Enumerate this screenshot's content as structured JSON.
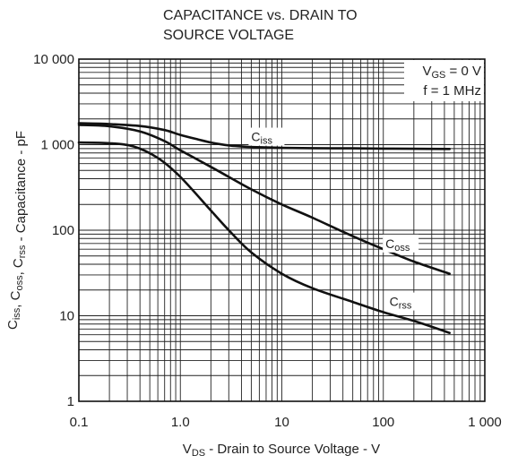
{
  "chart_data": {
    "type": "line",
    "title_lines": [
      "CAPACITANCE vs. DRAIN TO",
      "SOURCE VOLTAGE"
    ],
    "xscale": "log",
    "yscale": "log",
    "xlim": [
      0.1,
      1000
    ],
    "ylim": [
      1,
      10000
    ],
    "x_ticks": [
      0.1,
      1,
      10,
      100,
      1000
    ],
    "x_tick_labels": [
      "0.1",
      "1.0",
      "10",
      "100",
      "1 000"
    ],
    "y_ticks": [
      1,
      10,
      100,
      1000,
      10000
    ],
    "y_tick_labels": [
      "1",
      "10",
      "100",
      "1 000",
      "10 000"
    ],
    "xlabel": {
      "main": "V",
      "sub": "DS",
      "rest": " - Drain to Source Voltage - V"
    },
    "ylabel": [
      {
        "t": "C",
        "s": "iss"
      },
      {
        "t": ", C",
        "s": "oss"
      },
      {
        "t": ", C",
        "s": "rss"
      },
      {
        "t": " - Capacitance - pF",
        "s": ""
      }
    ],
    "conditions": [
      {
        "main": "V",
        "sub": "GS",
        "rest": " = 0 V"
      },
      {
        "main": "f = 1 MHz",
        "sub": "",
        "rest": ""
      }
    ],
    "grid": true,
    "series": [
      {
        "name": "Ciss",
        "label_main": "C",
        "label_sub": "iss",
        "label_at": [
          5,
          1100
        ],
        "x": [
          0.1,
          0.2,
          0.4,
          0.7,
          1.0,
          1.5,
          2,
          3,
          5,
          10,
          20,
          50,
          100,
          200,
          450
        ],
        "y": [
          1780,
          1740,
          1650,
          1480,
          1300,
          1150,
          1060,
          980,
          940,
          920,
          910,
          905,
          900,
          895,
          890
        ]
      },
      {
        "name": "Coss",
        "label_main": "C",
        "label_sub": "oss",
        "label_at": [
          105,
          62
        ],
        "x": [
          0.1,
          0.2,
          0.4,
          0.7,
          1.0,
          2,
          3,
          5,
          10,
          20,
          50,
          100,
          200,
          450
        ],
        "y": [
          1700,
          1640,
          1430,
          1100,
          860,
          550,
          420,
          300,
          200,
          140,
          85,
          60,
          43,
          31
        ]
      },
      {
        "name": "Crss",
        "label_main": "C",
        "label_sub": "rss",
        "label_at": [
          115,
          13
        ],
        "x": [
          0.1,
          0.2,
          0.35,
          0.6,
          1.0,
          2,
          3,
          5,
          10,
          20,
          50,
          100,
          200,
          450
        ],
        "y": [
          1060,
          1040,
          950,
          700,
          420,
          170,
          100,
          55,
          31,
          21,
          14.5,
          11,
          8.7,
          6.3
        ]
      }
    ]
  }
}
